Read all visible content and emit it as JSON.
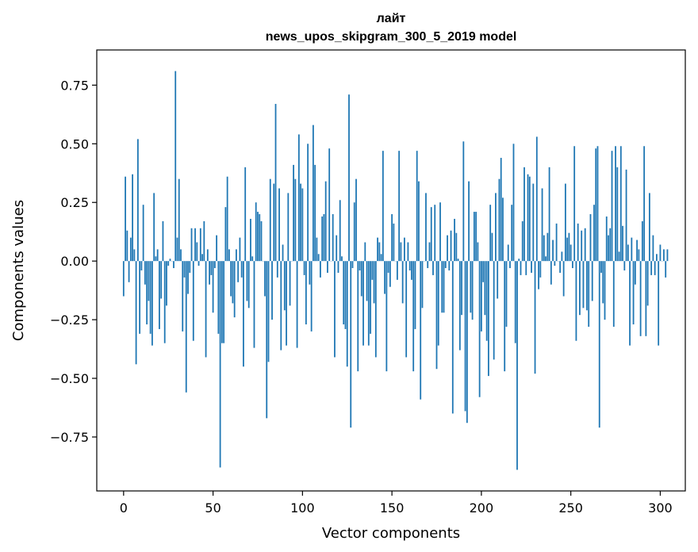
{
  "chart_data": {
    "type": "bar",
    "title": "лайт",
    "subtitle": "news_upos_skipgram_300_5_2019 model",
    "xlabel": "Vector components",
    "ylabel": "Components values",
    "xlim": [
      -15,
      314
    ],
    "ylim": [
      -0.98,
      0.9
    ],
    "xticks": [
      0,
      50,
      100,
      150,
      200,
      250,
      300
    ],
    "yticks": [
      -0.75,
      -0.5,
      -0.25,
      0.0,
      0.25,
      0.5,
      0.75
    ],
    "xtick_labels": [
      "0",
      "50",
      "100",
      "150",
      "200",
      "250",
      "300"
    ],
    "ytick_labels": [
      "−0.75",
      "−0.50",
      "−0.25",
      "0.00",
      "0.25",
      "0.50",
      "0.75"
    ],
    "grid": false,
    "bar_color": "#1f77b4",
    "values": [
      -0.15,
      0.36,
      0.13,
      -0.09,
      0.1,
      0.37,
      0.05,
      -0.44,
      0.52,
      -0.31,
      -0.04,
      0.24,
      -0.1,
      -0.27,
      -0.17,
      -0.31,
      -0.36,
      0.29,
      0.02,
      0.05,
      -0.29,
      -0.16,
      0.17,
      -0.35,
      -0.19,
      -0.02,
      0.01,
      0.0,
      -0.03,
      0.81,
      0.1,
      0.35,
      0.05,
      -0.3,
      -0.07,
      -0.56,
      -0.14,
      -0.05,
      0.14,
      -0.34,
      0.14,
      0.08,
      -0.02,
      0.14,
      0.03,
      0.17,
      -0.41,
      0.05,
      -0.1,
      -0.06,
      -0.22,
      -0.03,
      0.11,
      -0.31,
      -0.88,
      -0.35,
      -0.35,
      0.23,
      0.36,
      0.05,
      -0.15,
      -0.18,
      -0.24,
      0.05,
      -0.09,
      0.1,
      -0.07,
      -0.45,
      0.4,
      -0.17,
      -0.2,
      0.18,
      0.02,
      -0.37,
      0.25,
      0.21,
      0.2,
      0.17,
      0.0,
      -0.15,
      -0.67,
      -0.43,
      0.35,
      -0.25,
      0.33,
      0.67,
      -0.07,
      0.31,
      -0.38,
      0.07,
      -0.21,
      -0.36,
      0.29,
      -0.19,
      0.0,
      0.41,
      0.35,
      -0.37,
      0.54,
      0.33,
      0.31,
      -0.06,
      -0.27,
      0.5,
      -0.1,
      -0.3,
      0.58,
      0.41,
      0.1,
      0.03,
      -0.07,
      0.19,
      0.2,
      0.34,
      -0.05,
      0.48,
      0.0,
      0.2,
      -0.41,
      0.11,
      -0.05,
      0.26,
      0.02,
      -0.27,
      -0.29,
      -0.45,
      0.71,
      -0.71,
      -0.03,
      0.25,
      0.35,
      -0.47,
      -0.04,
      -0.15,
      -0.36,
      0.08,
      -0.17,
      -0.36,
      -0.31,
      -0.08,
      -0.18,
      -0.41,
      0.1,
      0.08,
      0.03,
      0.47,
      -0.14,
      -0.47,
      -0.05,
      -0.11,
      0.2,
      0.16,
      0.0,
      -0.08,
      0.47,
      0.08,
      -0.18,
      0.1,
      -0.41,
      0.08,
      -0.04,
      -0.08,
      -0.47,
      -0.29,
      0.47,
      0.34,
      -0.59,
      -0.2,
      0.0,
      0.29,
      -0.03,
      0.08,
      0.23,
      -0.06,
      0.24,
      -0.46,
      -0.36,
      0.25,
      -0.22,
      -0.22,
      -0.03,
      0.11,
      -0.04,
      0.13,
      -0.65,
      0.18,
      0.12,
      0.01,
      -0.38,
      -0.23,
      0.51,
      -0.64,
      -0.69,
      0.34,
      -0.22,
      -0.25,
      0.21,
      0.21,
      0.08,
      -0.58,
      -0.3,
      -0.09,
      -0.23,
      -0.34,
      -0.49,
      0.24,
      0.12,
      -0.42,
      0.29,
      -0.16,
      0.35,
      0.44,
      0.27,
      -0.47,
      -0.28,
      0.07,
      -0.03,
      0.24,
      0.5,
      -0.35,
      -0.89,
      0.01,
      -0.06,
      0.17,
      0.4,
      -0.06,
      0.37,
      0.36,
      -0.05,
      0.33,
      -0.48,
      0.53,
      -0.12,
      -0.07,
      0.31,
      0.11,
      0.02,
      0.12,
      0.4,
      -0.1,
      0.09,
      -0.02,
      0.16,
      0.0,
      -0.05,
      0.04,
      -0.15,
      0.33,
      0.1,
      0.12,
      0.07,
      -0.03,
      0.49,
      -0.34,
      0.16,
      -0.23,
      0.13,
      -0.2,
      0.14,
      -0.21,
      -0.28,
      0.2,
      -0.17,
      0.24,
      0.48,
      0.49,
      -0.71,
      -0.05,
      -0.18,
      -0.25,
      0.19,
      0.11,
      0.14,
      0.47,
      -0.28,
      0.49,
      0.4,
      0.04,
      0.49,
      0.15,
      -0.04,
      0.39,
      0.07,
      -0.36,
      0.1,
      -0.27,
      -0.1,
      0.09,
      0.05,
      -0.32,
      0.17,
      0.49,
      -0.32,
      -0.19,
      0.29,
      -0.06,
      0.11,
      -0.06,
      0.03,
      -0.36,
      0.07,
      0.0,
      0.05,
      -0.07,
      0.05
    ]
  }
}
